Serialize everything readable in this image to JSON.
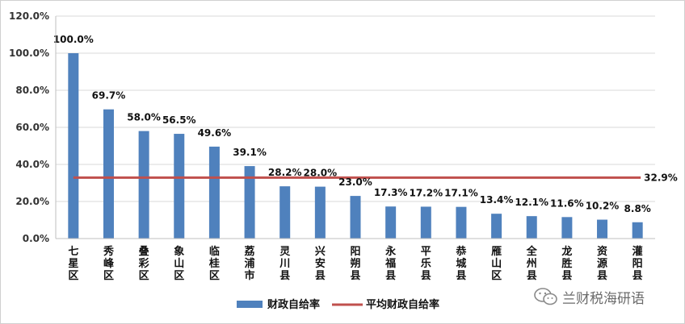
{
  "chart_data": {
    "type": "bar",
    "categories": [
      "七星区",
      "秀峰区",
      "叠彩区",
      "象山区",
      "临桂区",
      "荔浦市",
      "灵川县",
      "兴安县",
      "阳朔县",
      "永福县",
      "平乐县",
      "恭城县",
      "雁山区",
      "全州县",
      "龙胜县",
      "资源县",
      "灌阳县"
    ],
    "series": [
      {
        "name": "财政自给率",
        "values": [
          100.0,
          69.7,
          58.0,
          56.5,
          49.6,
          39.1,
          28.2,
          28.0,
          23.0,
          17.3,
          17.2,
          17.1,
          13.4,
          12.1,
          11.6,
          10.2,
          8.8
        ],
        "labels": [
          "100.0%",
          "69.7%",
          "58.0%",
          "56.5%",
          "49.6%",
          "39.1%",
          "28.2%",
          "28.0%",
          "23.0%",
          "17.3%",
          "17.2%",
          "17.1%",
          "13.4%",
          "12.1%",
          "11.6%",
          "10.2%",
          "8.8%"
        ],
        "color": "#4f81bd"
      },
      {
        "name": "平均财政自给率",
        "type": "line",
        "value": 32.9,
        "label": "32.9%",
        "color": "#c0504d"
      }
    ],
    "yticks": [
      "0.0%",
      "20.0%",
      "40.0%",
      "60.0%",
      "80.0%",
      "100.0%",
      "120.0%"
    ],
    "ylim": [
      0,
      120
    ],
    "grid": true,
    "legend_position": "bottom",
    "title": "",
    "xlabel": "",
    "ylabel": ""
  },
  "watermark": {
    "text": "兰财税海研语",
    "icon": "wechat-icon"
  }
}
